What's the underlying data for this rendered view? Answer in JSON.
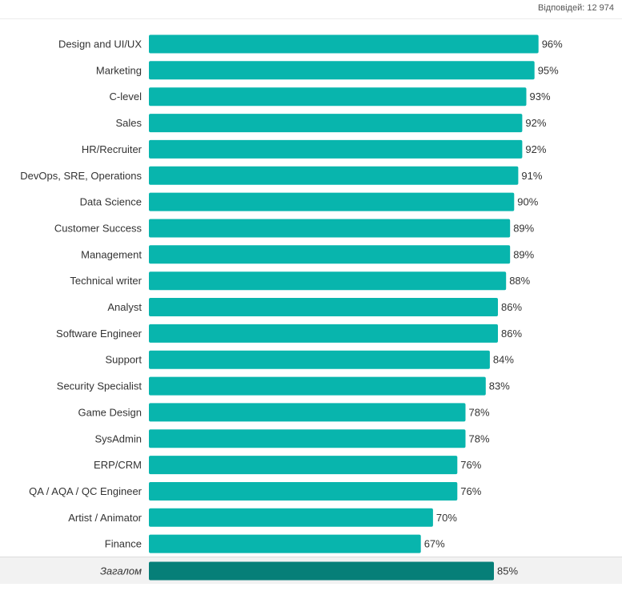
{
  "header": {
    "responses": "Відповідей: 12 974"
  },
  "chart_data": {
    "type": "bar",
    "orientation": "horizontal",
    "categories": [
      "Design and UI/UX",
      "Marketing",
      "C-level",
      "Sales",
      "HR/Recruiter",
      "DevOps, SRE, Operations",
      "Data Science",
      "Customer Success",
      "Management",
      "Technical writer",
      "Analyst",
      "Software Engineer",
      "Support",
      "Security Specialist",
      "Game Design",
      "SysAdmin",
      "ERP/CRM",
      "QA / AQA / QC Engineer",
      "Artist / Animator",
      "Finance"
    ],
    "values": [
      96,
      95,
      93,
      92,
      92,
      91,
      90,
      89,
      89,
      88,
      86,
      86,
      84,
      83,
      78,
      78,
      76,
      76,
      70,
      67
    ],
    "total": {
      "label": "Загалом",
      "value": 85
    },
    "value_suffix": "%",
    "xlim": [
      0,
      100
    ],
    "grid": false,
    "colors": {
      "bar": "#08b5ad",
      "total_bar": "#067f78"
    }
  }
}
